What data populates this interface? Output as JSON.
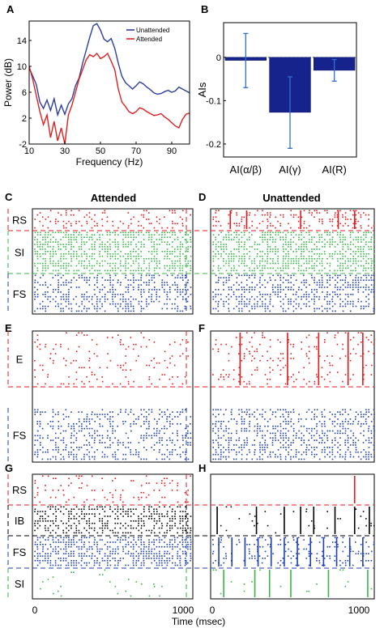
{
  "panel_letters": [
    "A",
    "B",
    "C",
    "D",
    "E",
    "F",
    "G",
    "H"
  ],
  "column_titles": {
    "attended": "Attended",
    "unattended": "Unattended"
  },
  "time_axis": {
    "label": "Time (msec)",
    "ticks": [
      "0",
      "1000"
    ]
  },
  "colors": {
    "unattended": "#2b3fa0",
    "attended": "#e02020",
    "bar": "#16238c",
    "errorbar": "#2f6fd6",
    "red": "#e41a1c",
    "green": "#39b54a",
    "blue": "#1f3fb4",
    "black": "#000000"
  },
  "chart_data": [
    {
      "panel": "A",
      "type": "line",
      "xlabel": "Frequency (Hz)",
      "ylabel": "Power (dB)",
      "xlim": [
        10,
        100
      ],
      "ylim": [
        -2,
        17
      ],
      "xticks": [
        10,
        30,
        50,
        70,
        90
      ],
      "yticks": [
        -2,
        2,
        6,
        10,
        14
      ],
      "legend": "top-right",
      "x": [
        10,
        12,
        14,
        16,
        18,
        20,
        22,
        24,
        26,
        28,
        30,
        32,
        34,
        36,
        38,
        40,
        42,
        44,
        46,
        48,
        50,
        52,
        54,
        56,
        58,
        60,
        62,
        64,
        66,
        68,
        70,
        72,
        74,
        76,
        78,
        80,
        82,
        84,
        86,
        88,
        90,
        92,
        94,
        96,
        98,
        100
      ],
      "series": [
        {
          "name": "Unattended",
          "values": [
            9.8,
            8.5,
            7.2,
            4.5,
            3.5,
            4.8,
            3.2,
            5.0,
            2.5,
            4.0,
            2.6,
            4.2,
            5.0,
            7.0,
            8.2,
            10.5,
            12.5,
            14.5,
            16.3,
            16.6,
            15.6,
            14.2,
            13.8,
            14.3,
            12.8,
            10.5,
            8.5,
            7.5,
            7.0,
            6.5,
            7.0,
            7.6,
            7.3,
            6.8,
            6.4,
            5.9,
            5.7,
            5.8,
            6.1,
            6.3,
            6.0,
            6.2,
            6.8,
            6.5,
            6.2,
            5.9
          ]
        },
        {
          "name": "Attended",
          "values": [
            10.0,
            8.0,
            5.5,
            3.0,
            1.0,
            2.5,
            -1.0,
            1.5,
            -1.5,
            0.5,
            -2.0,
            2.5,
            4.0,
            6.0,
            8.0,
            9.5,
            11.0,
            11.8,
            11.5,
            12.0,
            11.2,
            11.5,
            12.0,
            10.8,
            9.5,
            6.5,
            4.5,
            3.8,
            3.0,
            2.7,
            3.0,
            3.6,
            3.4,
            3.0,
            2.7,
            2.4,
            2.5,
            2.7,
            2.2,
            1.8,
            1.3,
            0.8,
            0.5,
            1.8,
            2.6,
            2.8
          ]
        }
      ]
    },
    {
      "panel": "B",
      "type": "bar",
      "ylabel": "AIs",
      "categories": [
        "AI(α/β)",
        "AI(γ)",
        "AI(R)"
      ],
      "values": [
        -0.007,
        -0.127,
        -0.03
      ],
      "errors": [
        [
          -0.07,
          0.055
        ],
        [
          -0.21,
          -0.045
        ],
        [
          -0.055,
          -0.005
        ]
      ],
      "ylim": [
        -0.23,
        0.08
      ],
      "yticks": [
        0,
        -0.1,
        -0.2
      ],
      "ytick_labels": [
        "0",
        "-0.1",
        "-0.2"
      ]
    },
    {
      "panel": "C",
      "type": "scatter",
      "xlim": [
        0,
        1100
      ],
      "groups": [
        {
          "name": "RS",
          "color": "red"
        },
        {
          "name": "SI",
          "color": "green"
        },
        {
          "name": "FS",
          "color": "blue"
        }
      ]
    },
    {
      "panel": "D",
      "type": "scatter",
      "xlim": [
        0,
        1100
      ],
      "groups": [
        {
          "name": "",
          "color": "red"
        },
        {
          "name": "",
          "color": "green"
        },
        {
          "name": "",
          "color": "blue"
        }
      ]
    },
    {
      "panel": "E",
      "type": "scatter",
      "xlim": [
        0,
        1100
      ],
      "groups": [
        {
          "name": "E",
          "color": "red"
        },
        {
          "name": "FS",
          "color": "blue"
        }
      ]
    },
    {
      "panel": "F",
      "type": "scatter",
      "xlim": [
        0,
        1100
      ],
      "groups": [
        {
          "name": "",
          "color": "red"
        },
        {
          "name": "",
          "color": "blue"
        }
      ]
    },
    {
      "panel": "G",
      "type": "scatter",
      "xlim": [
        0,
        1100
      ],
      "groups": [
        {
          "name": "RS",
          "color": "red"
        },
        {
          "name": "IB",
          "color": "black"
        },
        {
          "name": "FS",
          "color": "blue"
        },
        {
          "name": "SI",
          "color": "green"
        }
      ]
    },
    {
      "panel": "H",
      "type": "scatter",
      "xlim": [
        0,
        1100
      ],
      "groups": [
        {
          "name": "",
          "color": "red"
        },
        {
          "name": "",
          "color": "black"
        },
        {
          "name": "",
          "color": "blue"
        },
        {
          "name": "",
          "color": "green"
        }
      ]
    }
  ]
}
